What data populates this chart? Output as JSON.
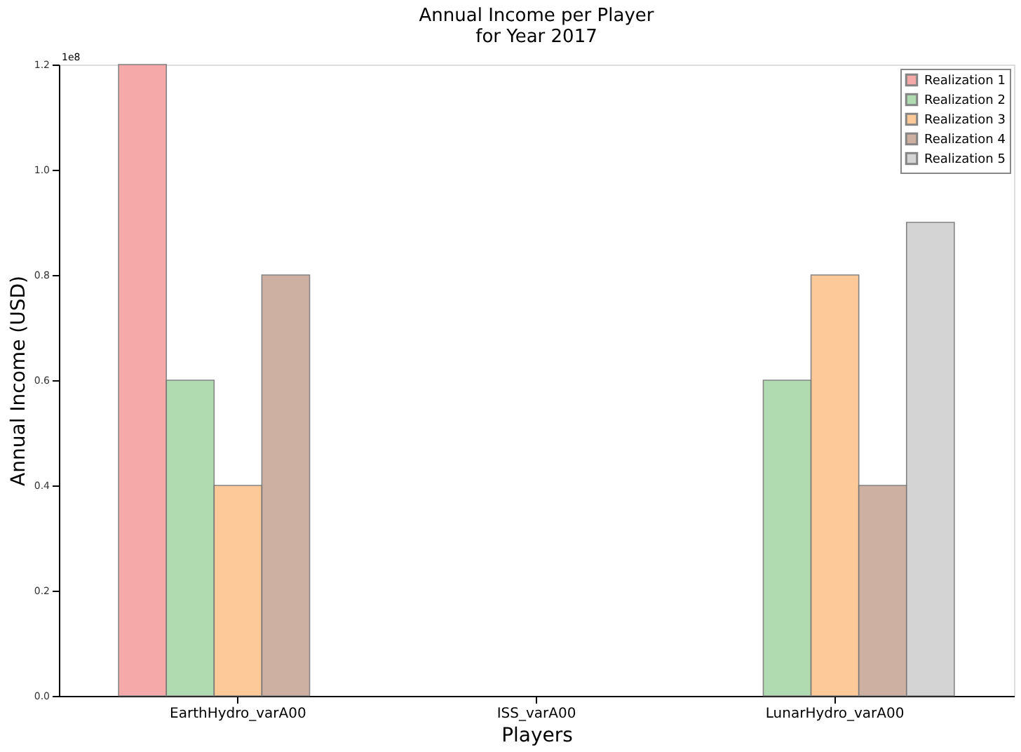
{
  "chart_data": {
    "type": "bar",
    "title": "Annual Income per Player\nfor Year 2017",
    "xlabel": "Players",
    "ylabel": "Annual Income (USD)",
    "categories": [
      "EarthHydro_varA00",
      "ISS_varA00",
      "LunarHydro_varA00"
    ],
    "series": [
      {
        "name": "Realization 1",
        "color": "#f4a0a0",
        "values": [
          1.2,
          null,
          null
        ]
      },
      {
        "name": "Realization 2",
        "color": "#a8d8a8",
        "values": [
          0.6,
          null,
          0.6
        ]
      },
      {
        "name": "Realization 3",
        "color": "#fdc48e",
        "values": [
          0.4,
          null,
          0.8
        ]
      },
      {
        "name": "Realization 4",
        "color": "#c9a89a",
        "values": [
          0.8,
          null,
          0.4
        ]
      },
      {
        "name": "Realization 5",
        "color": "#d0d0d0",
        "values": [
          null,
          null,
          0.9
        ]
      }
    ],
    "ylim": [
      0,
      1.2
    ],
    "yticks": [
      {
        "value": 0,
        "label": "0.0"
      },
      {
        "value": 0.2,
        "label": "0.2"
      },
      {
        "value": 0.4,
        "label": "0.4"
      },
      {
        "value": 0.6,
        "label": "0.6"
      },
      {
        "value": 0.8,
        "label": "0.8"
      },
      {
        "value": 1.0,
        "label": "1.0"
      },
      {
        "value": 1.2,
        "label": "1.2"
      }
    ],
    "annotations": [
      "1e8"
    ],
    "legend": "top right",
    "grid": false
  }
}
